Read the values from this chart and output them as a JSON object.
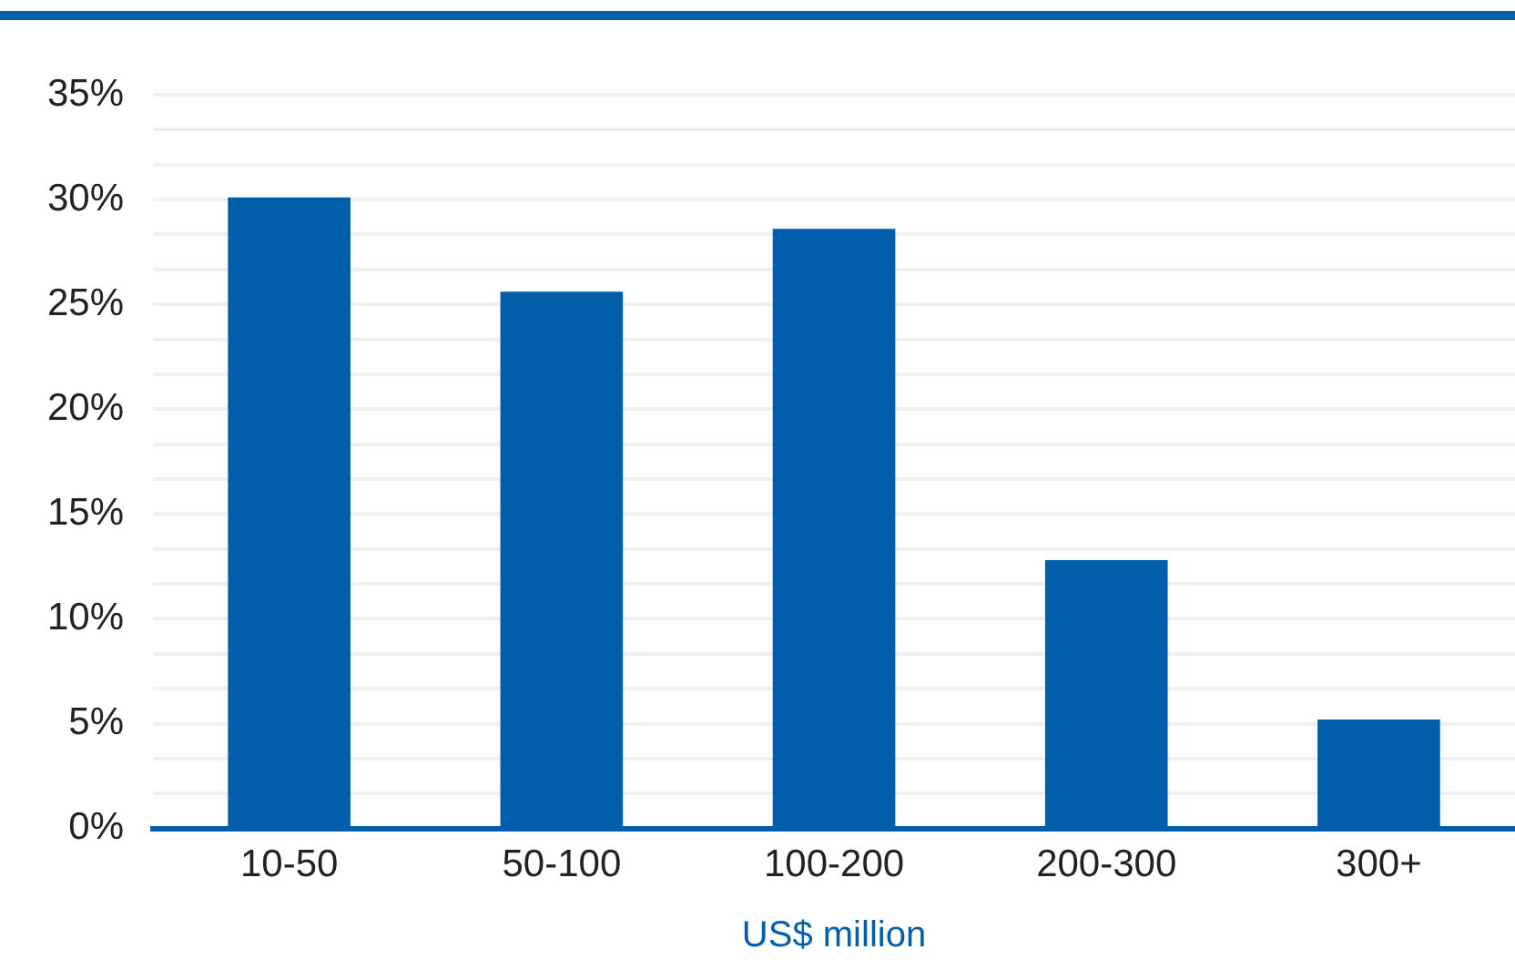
{
  "chart_data": {
    "type": "bar",
    "xlabel": "US$ million",
    "categories": [
      "10-50",
      "50-100",
      "100-200",
      "200-300",
      "300+"
    ],
    "values": [
      30.1,
      25.6,
      28.6,
      12.8,
      5.2
    ],
    "color": "#005eaa",
    "ylim": [
      0,
      35
    ],
    "yticks": [
      {
        "value": 0,
        "label": "0%"
      },
      {
        "value": 1.667,
        "label": null
      },
      {
        "value": 3.333,
        "label": null
      },
      {
        "value": 5,
        "label": "5%"
      },
      {
        "value": 6.667,
        "label": null
      },
      {
        "value": 8.333,
        "label": null
      },
      {
        "value": 10,
        "label": "10%"
      },
      {
        "value": 11.667,
        "label": null
      },
      {
        "value": 13.333,
        "label": null
      },
      {
        "value": 15,
        "label": "15%"
      },
      {
        "value": 16.667,
        "label": null
      },
      {
        "value": 18.333,
        "label": null
      },
      {
        "value": 20,
        "label": "20%"
      },
      {
        "value": 21.667,
        "label": null
      },
      {
        "value": 23.333,
        "label": null
      },
      {
        "value": 25,
        "label": "25%"
      },
      {
        "value": 26.667,
        "label": null
      },
      {
        "value": 28.333,
        "label": null
      },
      {
        "value": 30,
        "label": "30%"
      },
      {
        "value": 31.667,
        "label": null
      },
      {
        "value": 33.333,
        "label": null
      },
      {
        "value": 35,
        "label": "35%"
      }
    ],
    "grid": "y"
  }
}
